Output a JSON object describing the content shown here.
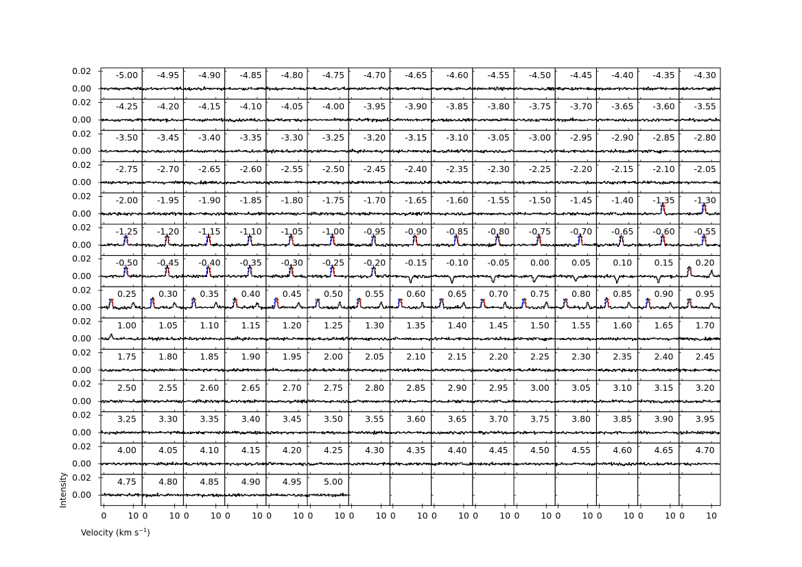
{
  "chart_data": {
    "type": "line",
    "layout": "grid of 15 columns x 14 rows of spectrum panels, 201 panels filled",
    "xlabel": "Velocity (km s",
    "xlabel_sup": "−1",
    "xlabel_close": ")",
    "ylabel": "Intensity",
    "xlim": [
      -1,
      13
    ],
    "ylim": [
      -0.012,
      0.024
    ],
    "x_ticks": [
      0,
      10
    ],
    "x_tick_labels": [
      "0",
      "10"
    ],
    "y_ticks": [
      0.0,
      0.02
    ],
    "y_tick_labels": [
      "0.00",
      "0.02"
    ],
    "offset_start": -5.0,
    "offset_step": 0.05,
    "panel_count": 201,
    "grid_columns": 15,
    "grid_rows": 14,
    "label_decimals": 2,
    "panel_labels": [
      "-5.00",
      "-4.95",
      "-4.90",
      "-4.85",
      "-4.80",
      "-4.75",
      "-4.70",
      "-4.65",
      "-4.60",
      "-4.55",
      "-4.50",
      "-4.45",
      "-4.40",
      "-4.35",
      "-4.30",
      "-4.25",
      "-4.20",
      "-4.15",
      "-4.10",
      "-4.05",
      "-4.00",
      "-3.95",
      "-3.90",
      "-3.85",
      "-3.80",
      "-3.75",
      "-3.70",
      "-3.65",
      "-3.60",
      "-3.55",
      "-3.50",
      "-3.45",
      "-3.40",
      "-3.35",
      "-3.30",
      "-3.25",
      "-3.20",
      "-3.15",
      "-3.10",
      "-3.05",
      "-3.00",
      "-2.95",
      "-2.90",
      "-2.85",
      "-2.80",
      "-2.75",
      "-2.70",
      "-2.65",
      "-2.60",
      "-2.55",
      "-2.50",
      "-2.45",
      "-2.40",
      "-2.35",
      "-2.30",
      "-2.25",
      "-2.20",
      "-2.15",
      "-2.10",
      "-2.05",
      "-2.00",
      "-1.95",
      "-1.90",
      "-1.85",
      "-1.80",
      "-1.75",
      "-1.70",
      "-1.65",
      "-1.60",
      "-1.55",
      "-1.50",
      "-1.45",
      "-1.40",
      "-1.35",
      "-1.30",
      "-1.25",
      "-1.20",
      "-1.15",
      "-1.10",
      "-1.05",
      "-1.00",
      "-0.95",
      "-0.90",
      "-0.85",
      "-0.80",
      "-0.75",
      "-0.70",
      "-0.65",
      "-0.60",
      "-0.55",
      "-0.50",
      "-0.45",
      "-0.40",
      "-0.35",
      "-0.30",
      "-0.25",
      "-0.20",
      "-0.15",
      "-0.10",
      "-0.05",
      "0.00",
      "0.05",
      "0.10",
      "0.15",
      "0.20",
      "0.25",
      "0.30",
      "0.35",
      "0.40",
      "0.45",
      "0.50",
      "0.55",
      "0.60",
      "0.65",
      "0.70",
      "0.75",
      "0.80",
      "0.85",
      "0.90",
      "0.95",
      "1.00",
      "1.05",
      "1.10",
      "1.15",
      "1.20",
      "1.25",
      "1.30",
      "1.35",
      "1.40",
      "1.45",
      "1.50",
      "1.55",
      "1.60",
      "1.65",
      "1.70",
      "1.75",
      "1.80",
      "1.85",
      "1.90",
      "1.95",
      "2.00",
      "2.05",
      "2.10",
      "2.15",
      "2.20",
      "2.25",
      "2.30",
      "2.35",
      "2.40",
      "2.45",
      "2.50",
      "2.55",
      "2.60",
      "2.65",
      "2.70",
      "2.75",
      "2.80",
      "2.85",
      "2.90",
      "2.95",
      "3.00",
      "3.05",
      "3.10",
      "3.15",
      "3.20",
      "3.25",
      "3.30",
      "3.35",
      "3.40",
      "3.45",
      "3.50",
      "3.55",
      "3.60",
      "3.65",
      "3.70",
      "3.75",
      "3.80",
      "3.85",
      "3.90",
      "3.95",
      "4.00",
      "4.05",
      "4.10",
      "4.15",
      "4.20",
      "4.25",
      "4.30",
      "4.35",
      "4.40",
      "4.45",
      "4.50",
      "4.55",
      "4.60",
      "4.65",
      "4.70",
      "4.75",
      "4.80",
      "4.85",
      "4.90",
      "4.95",
      "5.00"
    ],
    "spectrum_noise_rms": 0.0015,
    "emission_features": [
      {
        "from_offset": -1.35,
        "to_offset": -0.2,
        "velocity": 7.5,
        "peak": 0.012
      },
      {
        "from_offset": 0.2,
        "to_offset": 0.95,
        "velocity": 2.5,
        "peak": 0.011
      },
      {
        "from_offset": 0.2,
        "to_offset": 0.95,
        "velocity": 10.0,
        "peak": 0.006
      },
      {
        "from_offset": 1.0,
        "to_offset": 1.0,
        "velocity": 2.5,
        "peak": 0.006
      }
    ],
    "absorption_features": [
      {
        "from_offset": -0.15,
        "to_offset": 0.15,
        "velocity": 6.0,
        "depth": -0.007
      }
    ],
    "marker_colors": {
      "spectrum": "#000000",
      "marker_blue": "#0000ff",
      "marker_red": "#ff0000"
    }
  }
}
